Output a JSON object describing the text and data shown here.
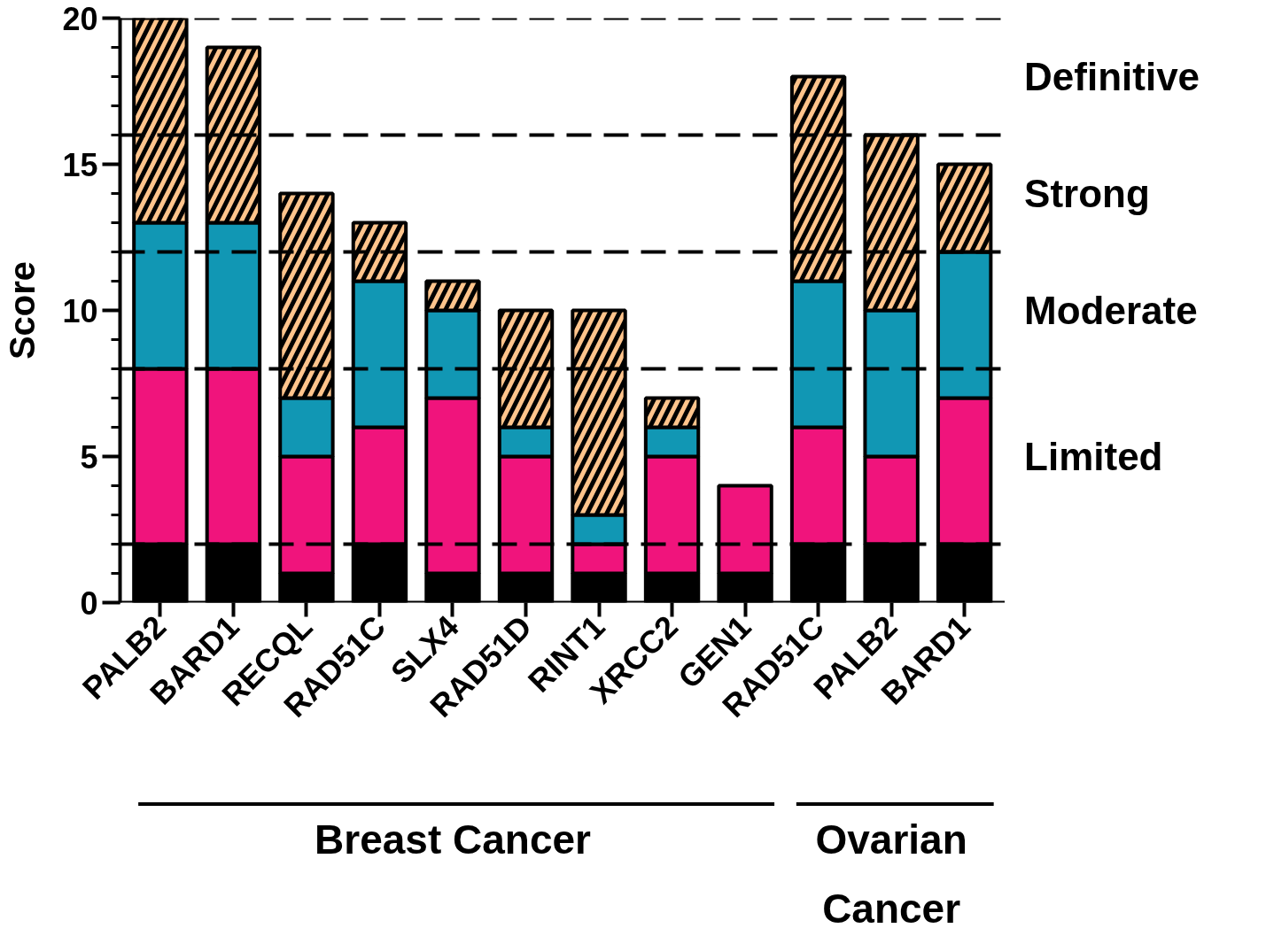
{
  "chart_data": {
    "type": "bar",
    "stacked": true,
    "ylabel": "Score",
    "categories": [
      "PALB2",
      "BARD1",
      "RECQL",
      "RAD51C",
      "SLX4",
      "RAD51D",
      "RINT1",
      "XRCC2",
      "GEN1",
      "RAD51C",
      "PALB2",
      "BARD1"
    ],
    "series": [
      {
        "color": "#000000",
        "values": [
          2,
          2,
          1,
          2,
          1,
          1,
          1,
          1,
          1,
          2,
          2,
          2
        ]
      },
      {
        "color": "#f0147c",
        "values": [
          6,
          6,
          4,
          4,
          6,
          4,
          1,
          4,
          3,
          4,
          3,
          5
        ]
      },
      {
        "color": "#1197b4",
        "values": [
          5,
          5,
          2,
          5,
          3,
          1,
          1,
          1,
          null,
          5,
          5,
          5
        ]
      },
      {
        "color": "#ffc48c",
        "values": [
          7,
          6,
          7,
          2,
          1,
          4,
          7,
          1,
          null,
          7,
          6,
          3
        ]
      }
    ],
    "ylim": [
      0,
      20
    ],
    "yticks": [
      0,
      5,
      10,
      15,
      20
    ],
    "grid": false,
    "ref_lines": [
      {
        "axis": "y",
        "value": 2,
        "line_style": "dashed"
      },
      {
        "axis": "y",
        "value": 8,
        "line_style": "dashed"
      },
      {
        "axis": "y",
        "value": 12,
        "line_style": "dashed"
      },
      {
        "axis": "y",
        "value": 16,
        "line_style": "dashed"
      },
      {
        "axis": "y",
        "value": 20,
        "line_style": "dashed"
      }
    ],
    "annotations": [
      "Definitive",
      "Strong",
      "Moderate",
      "Limited",
      "Breast Cancer",
      "Ovarian Cancer"
    ]
  }
}
